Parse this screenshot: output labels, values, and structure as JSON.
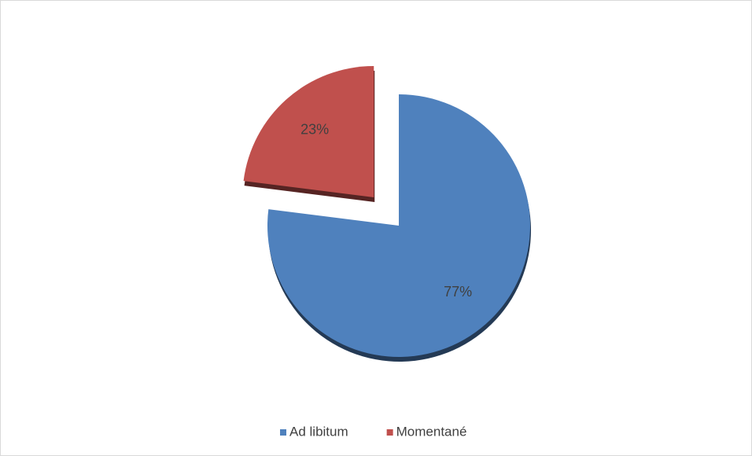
{
  "chart_data": {
    "type": "pie",
    "categories": [
      "Ad libitum",
      "Momentané"
    ],
    "values": [
      77,
      23
    ],
    "value_labels": [
      "77%",
      "23%"
    ],
    "colors": [
      "#4f81bd",
      "#c0504d"
    ],
    "legend": "bottom"
  }
}
